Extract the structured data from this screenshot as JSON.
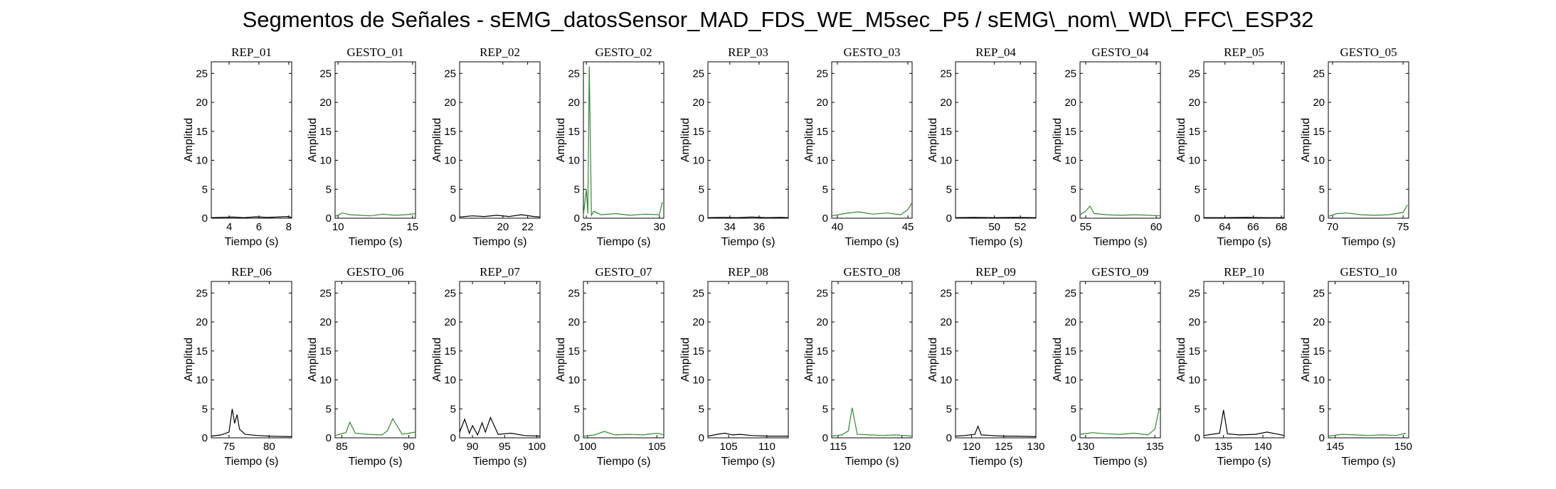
{
  "title": "Segmentos de Señales - sEMG_datosSensor_MAD_FDS_WE_M5sec_P5 / sEMG\\_nom\\_WD\\_FFC\\_ESP32",
  "colors": {
    "rep": "#000000",
    "gesto": "#2e8b2e",
    "axis": "#000000",
    "background": "#ffffff"
  },
  "chart_data": [
    {
      "type": "line",
      "title": "REP_01",
      "series_color": "rep",
      "xlabel": "Tiempo (s)",
      "ylabel": "Amplitud",
      "xlim": [
        2.8,
        8.2
      ],
      "ylim": [
        0,
        27
      ],
      "xticks": [
        4,
        6,
        8
      ],
      "yticks": [
        0,
        5,
        10,
        15,
        20,
        25
      ],
      "x": [
        2.8,
        3.5,
        4.2,
        5.0,
        5.8,
        6.5,
        7.2,
        7.9,
        8.2
      ],
      "y": [
        0.1,
        0.15,
        0.2,
        0.1,
        0.25,
        0.15,
        0.2,
        0.3,
        0.15
      ]
    },
    {
      "type": "line",
      "title": "GESTO_01",
      "series_color": "gesto",
      "xlabel": "Tiempo (s)",
      "ylabel": "Amplitud",
      "xlim": [
        9.8,
        15.2
      ],
      "ylim": [
        0,
        27
      ],
      "xticks": [
        10,
        15
      ],
      "yticks": [
        0,
        5,
        10,
        15,
        20,
        25
      ],
      "x": [
        9.8,
        10.3,
        10.8,
        11.5,
        12.2,
        13.0,
        13.8,
        14.5,
        15.2
      ],
      "y": [
        0.3,
        0.9,
        0.6,
        0.5,
        0.4,
        0.7,
        0.5,
        0.6,
        0.8
      ]
    },
    {
      "type": "line",
      "title": "REP_02",
      "series_color": "rep",
      "xlabel": "Tiempo (s)",
      "ylabel": "Amplitud",
      "xlim": [
        16.5,
        23.0
      ],
      "ylim": [
        0,
        27
      ],
      "xticks": [
        20,
        22
      ],
      "yticks": [
        0,
        5,
        10,
        15,
        20,
        25
      ],
      "x": [
        16.5,
        17.5,
        18.5,
        19.5,
        20.5,
        21.5,
        22.5,
        23.0
      ],
      "y": [
        0.2,
        0.4,
        0.3,
        0.5,
        0.3,
        0.6,
        0.3,
        0.2
      ]
    },
    {
      "type": "line",
      "title": "GESTO_02",
      "series_color": "gesto",
      "xlabel": "Tiempo (s)",
      "ylabel": "Amplitud",
      "xlim": [
        24.8,
        30.3
      ],
      "ylim": [
        0,
        27
      ],
      "xticks": [
        25,
        30
      ],
      "yticks": [
        0,
        5,
        10,
        15,
        20,
        25
      ],
      "x": [
        24.8,
        25.0,
        25.1,
        25.2,
        25.35,
        25.5,
        26.0,
        27.0,
        28.0,
        29.0,
        30.0,
        30.2
      ],
      "y": [
        0.5,
        5.0,
        0.8,
        26.2,
        0.5,
        1.2,
        0.6,
        0.8,
        0.5,
        0.7,
        0.6,
        2.8
      ]
    },
    {
      "type": "line",
      "title": "REP_03",
      "series_color": "rep",
      "xlabel": "Tiempo (s)",
      "ylabel": "Amplitud",
      "xlim": [
        32.5,
        38.0
      ],
      "ylim": [
        0,
        27
      ],
      "xticks": [
        34,
        36
      ],
      "yticks": [
        0,
        5,
        10,
        15,
        20,
        25
      ],
      "x": [
        32.5,
        33.5,
        34.5,
        35.5,
        36.5,
        37.5,
        38.0
      ],
      "y": [
        0.1,
        0.15,
        0.1,
        0.2,
        0.1,
        0.15,
        0.1
      ]
    },
    {
      "type": "line",
      "title": "GESTO_03",
      "series_color": "gesto",
      "xlabel": "Tiempo (s)",
      "ylabel": "Amplitud",
      "xlim": [
        39.6,
        45.3
      ],
      "ylim": [
        0,
        27
      ],
      "xticks": [
        40,
        45
      ],
      "yticks": [
        0,
        5,
        10,
        15,
        20,
        25
      ],
      "x": [
        39.6,
        40.5,
        41.5,
        42.5,
        43.5,
        44.5,
        45.0,
        45.3
      ],
      "y": [
        0.4,
        0.8,
        1.1,
        0.7,
        0.9,
        0.6,
        1.5,
        2.7
      ]
    },
    {
      "type": "line",
      "title": "REP_04",
      "series_color": "rep",
      "xlabel": "Tiempo (s)",
      "ylabel": "Amplitud",
      "xlim": [
        47.0,
        53.2
      ],
      "ylim": [
        0,
        27
      ],
      "xticks": [
        50,
        52
      ],
      "yticks": [
        0,
        5,
        10,
        15,
        20,
        25
      ],
      "x": [
        47.0,
        48.5,
        50.0,
        51.5,
        53.0,
        53.2
      ],
      "y": [
        0.1,
        0.15,
        0.1,
        0.15,
        0.1,
        0.1
      ]
    },
    {
      "type": "line",
      "title": "GESTO_04",
      "series_color": "gesto",
      "xlabel": "Tiempo (s)",
      "ylabel": "Amplitud",
      "xlim": [
        54.6,
        60.3
      ],
      "ylim": [
        0,
        27
      ],
      "xticks": [
        55,
        60
      ],
      "yticks": [
        0,
        5,
        10,
        15,
        20,
        25
      ],
      "x": [
        54.6,
        55.0,
        55.3,
        55.6,
        56.5,
        57.5,
        58.5,
        59.5,
        60.3
      ],
      "y": [
        0.6,
        1.2,
        2.1,
        0.8,
        0.6,
        0.5,
        0.6,
        0.5,
        0.4
      ]
    },
    {
      "type": "line",
      "title": "REP_05",
      "series_color": "rep",
      "xlabel": "Tiempo (s)",
      "ylabel": "Amplitud",
      "xlim": [
        62.5,
        68.2
      ],
      "ylim": [
        0,
        27
      ],
      "xticks": [
        64,
        66,
        68
      ],
      "yticks": [
        0,
        5,
        10,
        15,
        20,
        25
      ],
      "x": [
        62.5,
        64.0,
        65.5,
        67.0,
        68.2
      ],
      "y": [
        0.1,
        0.1,
        0.15,
        0.1,
        0.1
      ]
    },
    {
      "type": "line",
      "title": "GESTO_05",
      "series_color": "gesto",
      "xlabel": "Tiempo (s)",
      "ylabel": "Amplitud",
      "xlim": [
        69.7,
        75.4
      ],
      "ylim": [
        0,
        27
      ],
      "xticks": [
        70,
        75
      ],
      "yticks": [
        0,
        5,
        10,
        15,
        20,
        25
      ],
      "x": [
        69.7,
        70.3,
        71.0,
        72.0,
        73.0,
        74.0,
        75.0,
        75.3
      ],
      "y": [
        0.3,
        0.8,
        0.9,
        0.6,
        0.5,
        0.6,
        1.0,
        2.3
      ]
    },
    {
      "type": "line",
      "title": "REP_06",
      "series_color": "rep",
      "xlabel": "Tiempo (s)",
      "ylabel": "Amplitud",
      "xlim": [
        72.8,
        82.8
      ],
      "ylim": [
        0,
        27
      ],
      "xticks": [
        75,
        80
      ],
      "yticks": [
        0,
        5,
        10,
        15,
        20,
        25
      ],
      "x": [
        72.8,
        74.0,
        75.0,
        75.4,
        75.7,
        76.0,
        76.3,
        77.0,
        78.5,
        80.0,
        82.8
      ],
      "y": [
        0.3,
        0.5,
        1.0,
        5.0,
        2.5,
        4.0,
        1.5,
        0.6,
        0.4,
        0.3,
        0.2
      ]
    },
    {
      "type": "line",
      "title": "GESTO_06",
      "series_color": "gesto",
      "xlabel": "Tiempo (s)",
      "ylabel": "Amplitud",
      "xlim": [
        84.5,
        90.5
      ],
      "ylim": [
        0,
        27
      ],
      "xticks": [
        85,
        90
      ],
      "yticks": [
        0,
        5,
        10,
        15,
        20,
        25
      ],
      "x": [
        84.5,
        85.3,
        85.6,
        86.0,
        87.0,
        88.0,
        88.4,
        88.8,
        89.5,
        90.5
      ],
      "y": [
        0.4,
        0.9,
        2.7,
        0.8,
        0.6,
        0.5,
        1.2,
        3.3,
        0.6,
        1.0
      ]
    },
    {
      "type": "line",
      "title": "REP_07",
      "series_color": "rep",
      "xlabel": "Tiempo (s)",
      "ylabel": "Amplitud",
      "xlim": [
        88.0,
        100.5
      ],
      "ylim": [
        0,
        27
      ],
      "xticks": [
        90,
        95,
        100
      ],
      "yticks": [
        0,
        5,
        10,
        15,
        20,
        25
      ],
      "x": [
        88.0,
        88.8,
        89.5,
        90.0,
        90.8,
        91.5,
        92.0,
        92.8,
        94.0,
        96.0,
        98.0,
        100.5
      ],
      "y": [
        1.0,
        3.2,
        0.8,
        2.1,
        0.5,
        2.6,
        1.0,
        3.5,
        0.6,
        0.8,
        0.4,
        0.3
      ]
    },
    {
      "type": "line",
      "title": "GESTO_07",
      "series_color": "gesto",
      "xlabel": "Tiempo (s)",
      "ylabel": "Amplitud",
      "xlim": [
        99.7,
        105.5
      ],
      "ylim": [
        0,
        27
      ],
      "xticks": [
        100,
        105
      ],
      "yticks": [
        0,
        5,
        10,
        15,
        20,
        25
      ],
      "x": [
        99.7,
        100.5,
        101.2,
        102.0,
        103.0,
        104.0,
        105.0,
        105.5
      ],
      "y": [
        0.3,
        0.5,
        1.1,
        0.5,
        0.6,
        0.5,
        0.8,
        0.5
      ]
    },
    {
      "type": "line",
      "title": "REP_08",
      "series_color": "rep",
      "xlabel": "Tiempo (s)",
      "ylabel": "Amplitud",
      "xlim": [
        102.3,
        112.8
      ],
      "ylim": [
        0,
        27
      ],
      "xticks": [
        105,
        110
      ],
      "yticks": [
        0,
        5,
        10,
        15,
        20,
        25
      ],
      "x": [
        102.3,
        103.5,
        104.5,
        105.5,
        106.5,
        108.0,
        110.0,
        112.8
      ],
      "y": [
        0.3,
        0.6,
        0.8,
        0.5,
        0.6,
        0.4,
        0.3,
        0.3
      ]
    },
    {
      "type": "line",
      "title": "GESTO_08",
      "series_color": "gesto",
      "xlabel": "Tiempo (s)",
      "ylabel": "Amplitud",
      "xlim": [
        114.5,
        120.8
      ],
      "ylim": [
        0,
        27
      ],
      "xticks": [
        115,
        120
      ],
      "yticks": [
        0,
        5,
        10,
        15,
        20,
        25
      ],
      "x": [
        114.5,
        115.3,
        115.8,
        116.1,
        116.5,
        117.5,
        118.5,
        119.5,
        120.8
      ],
      "y": [
        0.3,
        0.5,
        1.2,
        5.2,
        0.6,
        0.5,
        0.4,
        0.5,
        0.3
      ]
    },
    {
      "type": "line",
      "title": "REP_09",
      "series_color": "rep",
      "xlabel": "Tiempo (s)",
      "ylabel": "Amplitud",
      "xlim": [
        117.5,
        130.0
      ],
      "ylim": [
        0,
        27
      ],
      "xticks": [
        120,
        125,
        130
      ],
      "yticks": [
        0,
        5,
        10,
        15,
        20,
        25
      ],
      "x": [
        117.5,
        119.0,
        120.5,
        121.0,
        121.5,
        123.0,
        125.0,
        127.0,
        130.0
      ],
      "y": [
        0.3,
        0.4,
        0.6,
        2.0,
        0.5,
        0.4,
        0.3,
        0.3,
        0.2
      ]
    },
    {
      "type": "line",
      "title": "GESTO_09",
      "series_color": "gesto",
      "xlabel": "Tiempo (s)",
      "ylabel": "Amplitud",
      "xlim": [
        129.6,
        135.4
      ],
      "ylim": [
        0,
        27
      ],
      "xticks": [
        130,
        135
      ],
      "yticks": [
        0,
        5,
        10,
        15,
        20,
        25
      ],
      "x": [
        129.6,
        130.5,
        131.5,
        132.5,
        133.5,
        134.5,
        135.0,
        135.3
      ],
      "y": [
        0.6,
        0.9,
        0.7,
        0.6,
        0.8,
        0.5,
        1.5,
        5.0
      ]
    },
    {
      "type": "line",
      "title": "REP_10",
      "series_color": "rep",
      "xlabel": "Tiempo (s)",
      "ylabel": "Amplitud",
      "xlim": [
        132.5,
        142.7
      ],
      "ylim": [
        0,
        27
      ],
      "xticks": [
        135,
        140
      ],
      "yticks": [
        0,
        5,
        10,
        15,
        20,
        25
      ],
      "x": [
        132.5,
        133.5,
        134.5,
        135.0,
        135.5,
        137.0,
        139.0,
        140.5,
        142.7
      ],
      "y": [
        0.4,
        0.6,
        0.8,
        4.8,
        0.7,
        0.5,
        0.6,
        1.0,
        0.4
      ]
    },
    {
      "type": "line",
      "title": "GESTO_10",
      "series_color": "gesto",
      "xlabel": "Tiempo (s)",
      "ylabel": "Amplitud",
      "xlim": [
        144.5,
        150.4
      ],
      "ylim": [
        0,
        27
      ],
      "xticks": [
        145,
        150
      ],
      "yticks": [
        0,
        5,
        10,
        15,
        20,
        25
      ],
      "x": [
        144.5,
        145.5,
        146.5,
        147.5,
        148.5,
        149.5,
        150.2
      ],
      "y": [
        0.3,
        0.6,
        0.5,
        0.4,
        0.5,
        0.4,
        0.8
      ]
    }
  ]
}
